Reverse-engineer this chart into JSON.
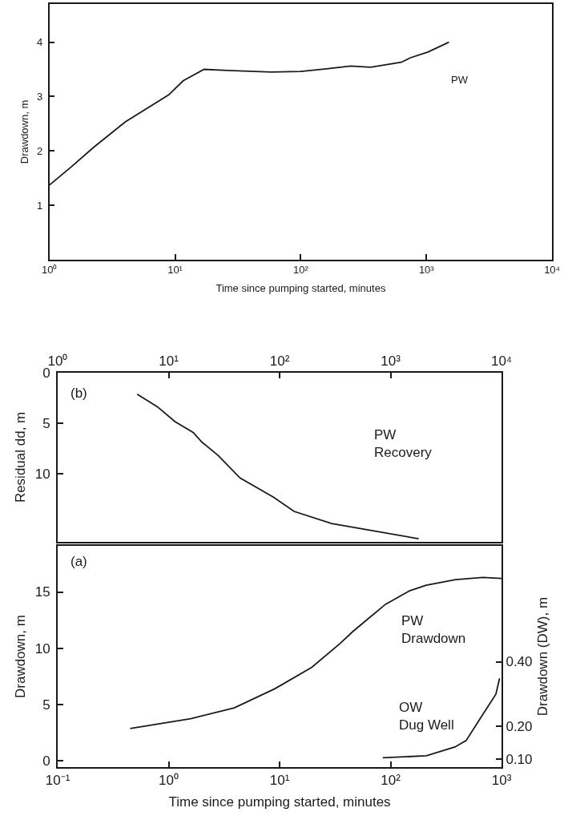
{
  "chart_data": [
    {
      "type": "line",
      "xlabel": "Time since pumping started, minutes",
      "ylabel": "Drawdown, m",
      "log": "x",
      "xlim": [
        1,
        10000
      ],
      "xticks": [
        {
          "value": 1,
          "label": "10⁰"
        },
        {
          "value": 10,
          "label": "10¹"
        },
        {
          "value": 100,
          "label": "10²"
        },
        {
          "value": 1000,
          "label": "10³"
        },
        {
          "value": 10000,
          "label": "10⁴"
        }
      ],
      "ylim": [
        0,
        4.7
      ],
      "yticks": [
        1,
        2,
        3,
        4
      ],
      "series": [
        {
          "color": "#1a1a1a",
          "x": [
            1.0,
            1.5,
            2.26,
            4.0,
            8.9,
            11.6,
            17,
            26,
            58,
            100,
            160,
            250,
            360,
            630,
            740,
            1030,
            1510
          ],
          "values": [
            1.37,
            1.71,
            2.07,
            2.53,
            3.03,
            3.29,
            3.5,
            3.48,
            3.45,
            3.46,
            3.51,
            3.56,
            3.54,
            3.63,
            3.71,
            3.82,
            4.0
          ]
        }
      ],
      "annotations": [
        "PW"
      ]
    },
    {
      "type": "line",
      "ylabel": "Residual dd, m",
      "log": "x",
      "xlim": [
        1,
        10000
      ],
      "xticks": [
        {
          "value": 1,
          "label": "10⁰"
        },
        {
          "value": 10,
          "label": "10¹"
        },
        {
          "value": 100,
          "label": "10²"
        },
        {
          "value": 1000,
          "label": "10³"
        },
        {
          "value": 10000,
          "label": "10⁴"
        }
      ],
      "ylim": [
        16.7,
        0
      ],
      "yticks": [
        0,
        5,
        10
      ],
      "series": [
        {
          "color": "#1a1a1a",
          "x": [
            5.2,
            7.9,
            11.4,
            16.6,
            20,
            28,
            44,
            88,
            135,
            294,
            780,
            1790
          ],
          "values": [
            2.12,
            3.36,
            4.83,
            5.89,
            6.87,
            8.18,
            10.4,
            12.3,
            13.7,
            14.9,
            15.7,
            16.4
          ]
        }
      ],
      "annotations": [
        "(b)",
        "PW\nRecovery"
      ]
    },
    {
      "type": "line",
      "xlabel": "Time since pumping started, minutes",
      "ylabel": "Drawdown, m",
      "y2label": "Drawdown (DW), m",
      "log": "x",
      "xlim": [
        0.1,
        1000
      ],
      "xticks": [
        {
          "value": 0.1,
          "label": "10⁻¹"
        },
        {
          "value": 1,
          "label": "10⁰"
        },
        {
          "value": 10,
          "label": "10¹"
        },
        {
          "value": 100,
          "label": "10²"
        },
        {
          "value": 1000,
          "label": "10³"
        }
      ],
      "ylim": [
        -0.6,
        19.1
      ],
      "yticks": [
        0,
        5,
        10,
        15
      ],
      "y2lim": [
        0.075,
        0.757
      ],
      "y2ticks": [
        {
          "value": 0.1,
          "label": "0.10"
        },
        {
          "value": 0.2,
          "label": "0.20"
        },
        {
          "value": 0.4,
          "label": "0.40"
        }
      ],
      "series": [
        {
          "color": "#1a1a1a",
          "x": [
            0.45,
            1.58,
            3.9,
            9.1,
            19.5,
            35,
            46,
            90,
            148,
            209,
            385,
            680,
            1000
          ],
          "values": [
            2.84,
            3.71,
            4.68,
            6.39,
            8.29,
            10.4,
            11.5,
            13.9,
            15.1,
            15.6,
            16.1,
            16.3,
            16.2
          ]
        },
        {
          "color": "#1a1a1a",
          "axis": "y2",
          "x": [
            85,
            210,
            380,
            480,
            610,
            890,
            960
          ],
          "values": [
            0.104,
            0.11,
            0.137,
            0.157,
            0.213,
            0.3,
            0.349
          ]
        }
      ],
      "annotations": [
        "(a)",
        "PW\nDrawdown",
        "OW\nDug Well"
      ]
    }
  ]
}
